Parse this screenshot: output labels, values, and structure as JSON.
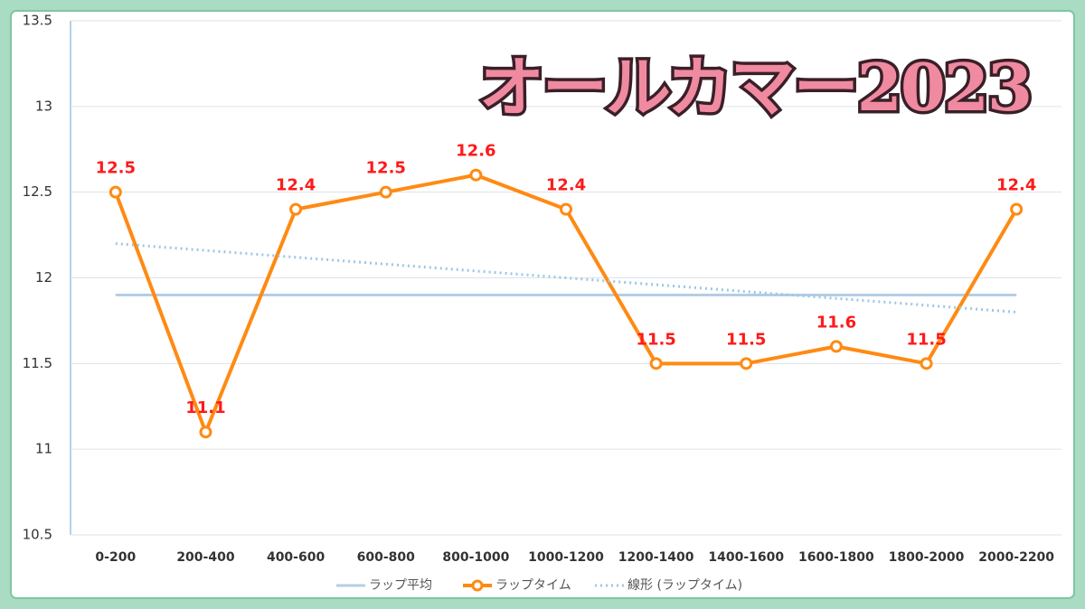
{
  "chart_data": {
    "type": "line",
    "title": "オールカマー2023",
    "categories": [
      "0-200",
      "200-400",
      "400-600",
      "600-800",
      "800-1000",
      "1000-1200",
      "1200-1400",
      "1400-1600",
      "1600-1800",
      "1800-2000",
      "2000-2200"
    ],
    "series": [
      {
        "name": "ラップ平均",
        "color": "#b4cde6",
        "style": "solid",
        "values": [
          11.9,
          11.9,
          11.9,
          11.9,
          11.9,
          11.9,
          11.9,
          11.9,
          11.9,
          11.9,
          11.9
        ]
      },
      {
        "name": "ラップタイム",
        "color": "#ff8a12",
        "style": "marker",
        "values": [
          12.5,
          11.1,
          12.4,
          12.5,
          12.6,
          12.4,
          11.5,
          11.5,
          11.6,
          11.5,
          12.4
        ]
      },
      {
        "name": "線形 (ラップタイム)",
        "color": "#9cc7e4",
        "style": "dotted",
        "values": [
          12.2,
          12.16,
          12.12,
          12.08,
          12.04,
          12.0,
          11.96,
          11.92,
          11.88,
          11.84,
          11.8
        ]
      }
    ],
    "data_labels_series": 1,
    "ylim": [
      10.5,
      13.5
    ],
    "yticks": [
      10.5,
      11,
      11.5,
      12,
      12.5,
      13,
      13.5
    ],
    "grid": true,
    "legend": "bottom"
  }
}
